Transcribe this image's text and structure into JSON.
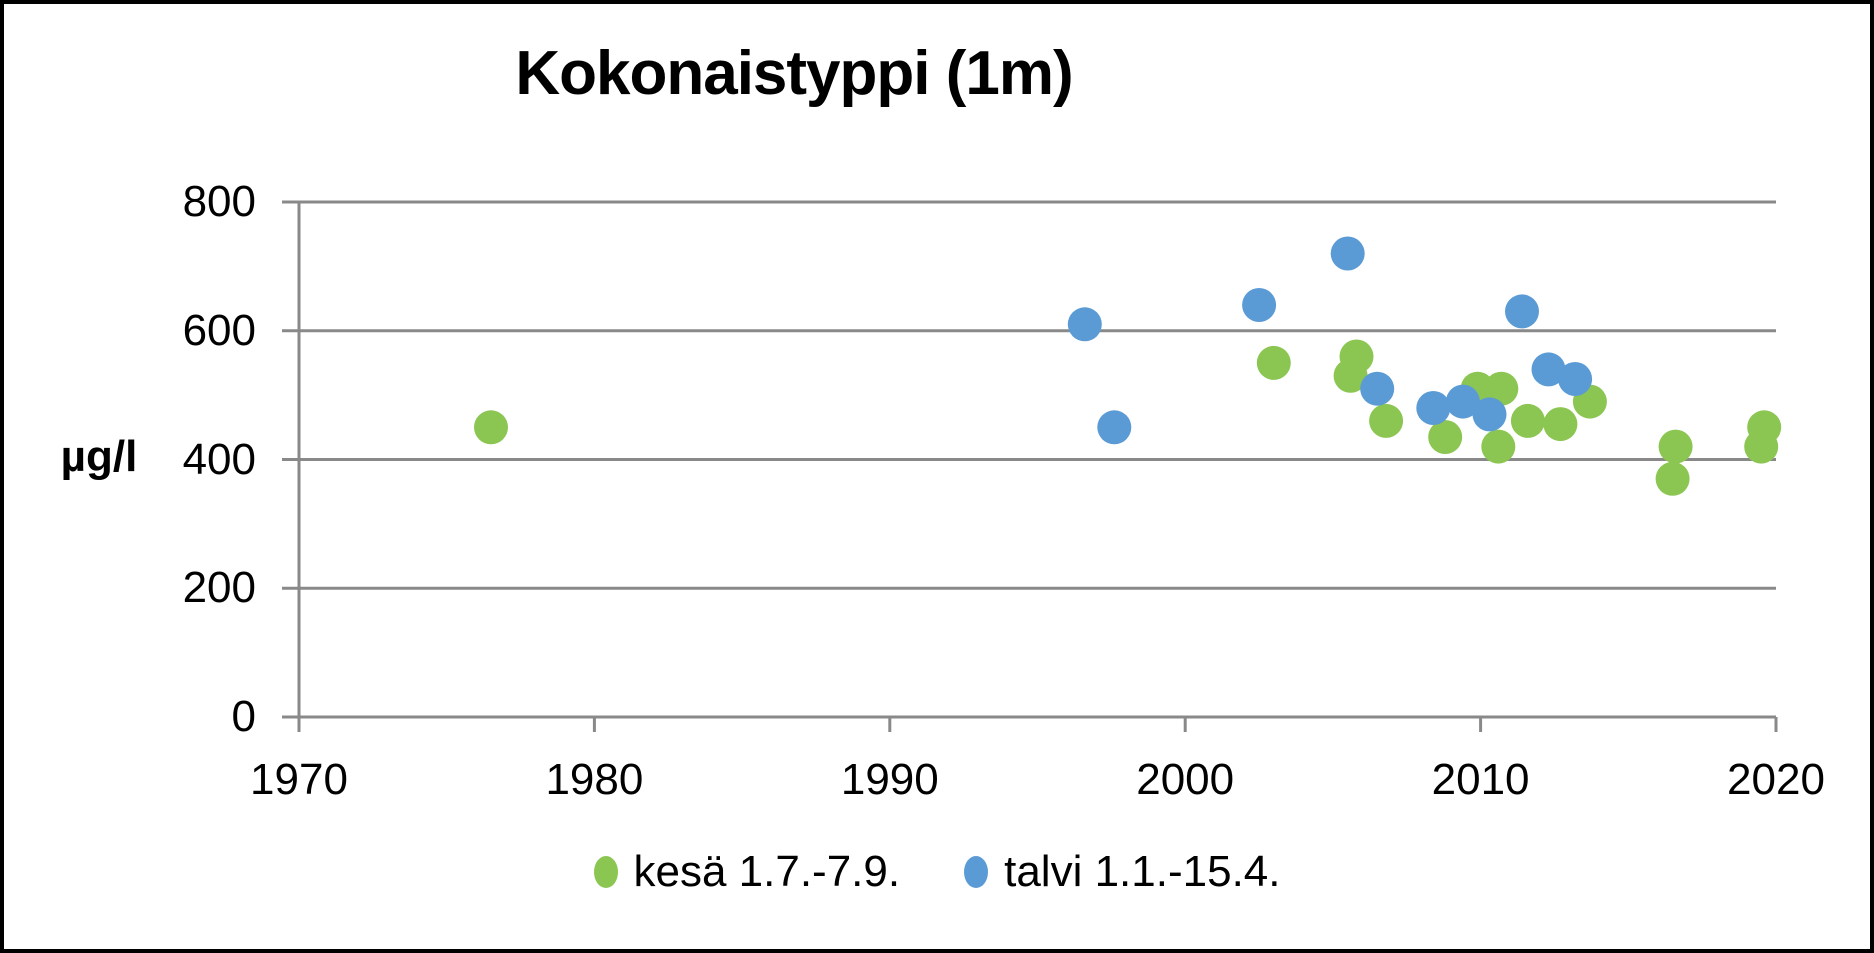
{
  "chart": {
    "title": "Kokonaistyppi (1m)",
    "y_unit": "µg/l"
  },
  "chart_data": {
    "type": "scatter",
    "title": "Kokonaistyppi (1m)",
    "xlabel": "",
    "ylabel": "µg/l",
    "xlim": [
      1970,
      2020
    ],
    "ylim": [
      0,
      800
    ],
    "x_ticks": [
      1970,
      1980,
      1990,
      2000,
      2010,
      2020
    ],
    "y_ticks": [
      0,
      200,
      400,
      600,
      800
    ],
    "grid": "horizontal",
    "legend_position": "bottom-center",
    "grid_color": "#898989",
    "series": [
      {
        "name": "kesä 1.7.-7.9.",
        "color": "#8CC652",
        "points": [
          [
            1976.5,
            450
          ],
          [
            2003.0,
            550
          ],
          [
            2005.6,
            530
          ],
          [
            2005.8,
            560
          ],
          [
            2006.8,
            460
          ],
          [
            2008.8,
            435
          ],
          [
            2009.9,
            510
          ],
          [
            2010.6,
            420
          ],
          [
            2010.7,
            510
          ],
          [
            2011.6,
            460
          ],
          [
            2012.7,
            455
          ],
          [
            2013.7,
            490
          ],
          [
            2016.5,
            370
          ],
          [
            2016.6,
            420
          ],
          [
            2019.5,
            420
          ],
          [
            2019.6,
            450
          ]
        ]
      },
      {
        "name": "talvi 1.1.-15.4.",
        "color": "#5B9BD5",
        "points": [
          [
            1996.6,
            610
          ],
          [
            1997.6,
            450
          ],
          [
            2002.5,
            640
          ],
          [
            2005.5,
            720
          ],
          [
            2006.5,
            510
          ],
          [
            2008.4,
            480
          ],
          [
            2009.4,
            490
          ],
          [
            2010.3,
            470
          ],
          [
            2011.4,
            630
          ],
          [
            2012.3,
            540
          ],
          [
            2013.2,
            525
          ]
        ]
      }
    ]
  }
}
